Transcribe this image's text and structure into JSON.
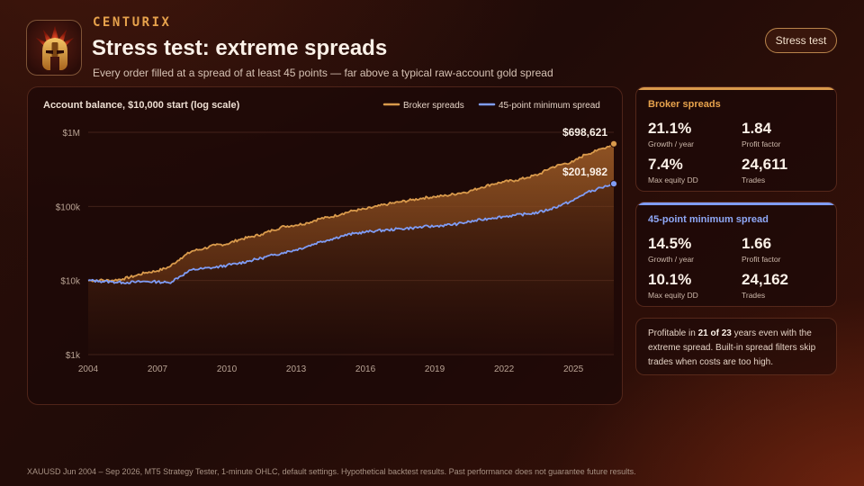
{
  "brand": {
    "name": "CENTURIX"
  },
  "header": {
    "title": "Stress test: extreme spreads",
    "subtitle": "Every order filled at a spread of at least 45 points — far above a typical raw-account gold spread",
    "badge": "Stress test"
  },
  "colors": {
    "broker": "#d99a4c",
    "minimum": "#7f9cf5"
  },
  "stats": [
    {
      "heading": "Broker spreads",
      "metrics": [
        {
          "value": "21.1%",
          "label": "Growth / year"
        },
        {
          "value": "1.84",
          "label": "Profit factor"
        },
        {
          "value": "7.4%",
          "label": "Max equity DD"
        },
        {
          "value": "24,611",
          "label": "Trades"
        }
      ]
    },
    {
      "heading": "45-point minimum spread",
      "metrics": [
        {
          "value": "14.5%",
          "label": "Growth / year"
        },
        {
          "value": "1.66",
          "label": "Profit factor"
        },
        {
          "value": "10.1%",
          "label": "Max equity DD"
        },
        {
          "value": "24,162",
          "label": "Trades"
        }
      ]
    }
  ],
  "note": {
    "before": "Profitable in ",
    "bold": "21 of 23",
    "after": " years even with the extreme spread. Built-in spread filters skip trades when costs are too high."
  },
  "footer": "XAUUSD Jun 2004 – Sep 2026, MT5 Strategy Tester, 1-minute OHLC, default settings. Hypothetical backtest results. Past performance does not guarantee future results.",
  "chart_data": {
    "type": "line",
    "title": "Account balance, $10,000 start (log scale)",
    "y_scale": "log",
    "ylim": [
      1000,
      1000000
    ],
    "xlim": [
      2004.0,
      2026.75
    ],
    "y_ticks": [
      {
        "value": 1000,
        "label": "$1k"
      },
      {
        "value": 10000,
        "label": "$10k"
      },
      {
        "value": 100000,
        "label": "$100k"
      },
      {
        "value": 1000000,
        "label": "$1M"
      }
    ],
    "x_ticks": [
      2004,
      2007,
      2010,
      2013,
      2016,
      2019,
      2022,
      2025
    ],
    "grid": "horizontal",
    "legend_position": "top-right",
    "series": [
      {
        "name": "Broker spreads",
        "end_label": "$698,621",
        "points": [
          [
            2004.0,
            10000
          ],
          [
            2004.5,
            10100
          ],
          [
            2005.0,
            10000
          ],
          [
            2005.5,
            10500
          ],
          [
            2006.0,
            11500
          ],
          [
            2006.5,
            12800
          ],
          [
            2007.0,
            13500
          ],
          [
            2007.5,
            15200
          ],
          [
            2008.0,
            20000
          ],
          [
            2008.5,
            25000
          ],
          [
            2009.0,
            27000
          ],
          [
            2009.5,
            30000
          ],
          [
            2010.0,
            31000
          ],
          [
            2010.5,
            35500
          ],
          [
            2011.0,
            38500
          ],
          [
            2011.5,
            42000
          ],
          [
            2012.0,
            48000
          ],
          [
            2012.5,
            54000
          ],
          [
            2013.0,
            56000
          ],
          [
            2013.5,
            60000
          ],
          [
            2014.0,
            68000
          ],
          [
            2014.5,
            72000
          ],
          [
            2015.0,
            80000
          ],
          [
            2015.5,
            88000
          ],
          [
            2016.0,
            92000
          ],
          [
            2016.5,
            100000
          ],
          [
            2017.0,
            108000
          ],
          [
            2017.5,
            115000
          ],
          [
            2018.0,
            122000
          ],
          [
            2018.5,
            130000
          ],
          [
            2019.0,
            135000
          ],
          [
            2019.5,
            140000
          ],
          [
            2020.0,
            150000
          ],
          [
            2020.5,
            160000
          ],
          [
            2021.0,
            180000
          ],
          [
            2021.5,
            200000
          ],
          [
            2022.0,
            215000
          ],
          [
            2022.5,
            225000
          ],
          [
            2023.0,
            245000
          ],
          [
            2023.5,
            270000
          ],
          [
            2024.0,
            330000
          ],
          [
            2024.5,
            370000
          ],
          [
            2025.0,
            400000
          ],
          [
            2025.5,
            500000
          ],
          [
            2026.0,
            560000
          ],
          [
            2026.75,
            698621
          ]
        ]
      },
      {
        "name": "45-point minimum spread",
        "end_label": "$201,982",
        "points": [
          [
            2004.0,
            10000
          ],
          [
            2004.5,
            9800
          ],
          [
            2005.0,
            9600
          ],
          [
            2005.5,
            9400
          ],
          [
            2006.0,
            9500
          ],
          [
            2006.5,
            9700
          ],
          [
            2007.0,
            9600
          ],
          [
            2007.5,
            9300
          ],
          [
            2008.0,
            11500
          ],
          [
            2008.5,
            14000
          ],
          [
            2009.0,
            14500
          ],
          [
            2009.5,
            15000
          ],
          [
            2010.0,
            16000
          ],
          [
            2010.5,
            17000
          ],
          [
            2011.0,
            18500
          ],
          [
            2011.5,
            20000
          ],
          [
            2012.0,
            22000
          ],
          [
            2012.5,
            24000
          ],
          [
            2013.0,
            26000
          ],
          [
            2013.5,
            29000
          ],
          [
            2014.0,
            33000
          ],
          [
            2014.5,
            36000
          ],
          [
            2015.0,
            40000
          ],
          [
            2015.5,
            43000
          ],
          [
            2016.0,
            45000
          ],
          [
            2016.5,
            47000
          ],
          [
            2017.0,
            48000
          ],
          [
            2017.5,
            50000
          ],
          [
            2018.0,
            51000
          ],
          [
            2018.5,
            53000
          ],
          [
            2019.0,
            54000
          ],
          [
            2019.5,
            56000
          ],
          [
            2020.0,
            58000
          ],
          [
            2020.5,
            62000
          ],
          [
            2021.0,
            66000
          ],
          [
            2021.5,
            70000
          ],
          [
            2022.0,
            73000
          ],
          [
            2022.5,
            76000
          ],
          [
            2023.0,
            79000
          ],
          [
            2023.5,
            83000
          ],
          [
            2024.0,
            92000
          ],
          [
            2024.5,
            105000
          ],
          [
            2025.0,
            120000
          ],
          [
            2025.5,
            150000
          ],
          [
            2026.0,
            170000
          ],
          [
            2026.75,
            201982
          ]
        ]
      }
    ]
  }
}
